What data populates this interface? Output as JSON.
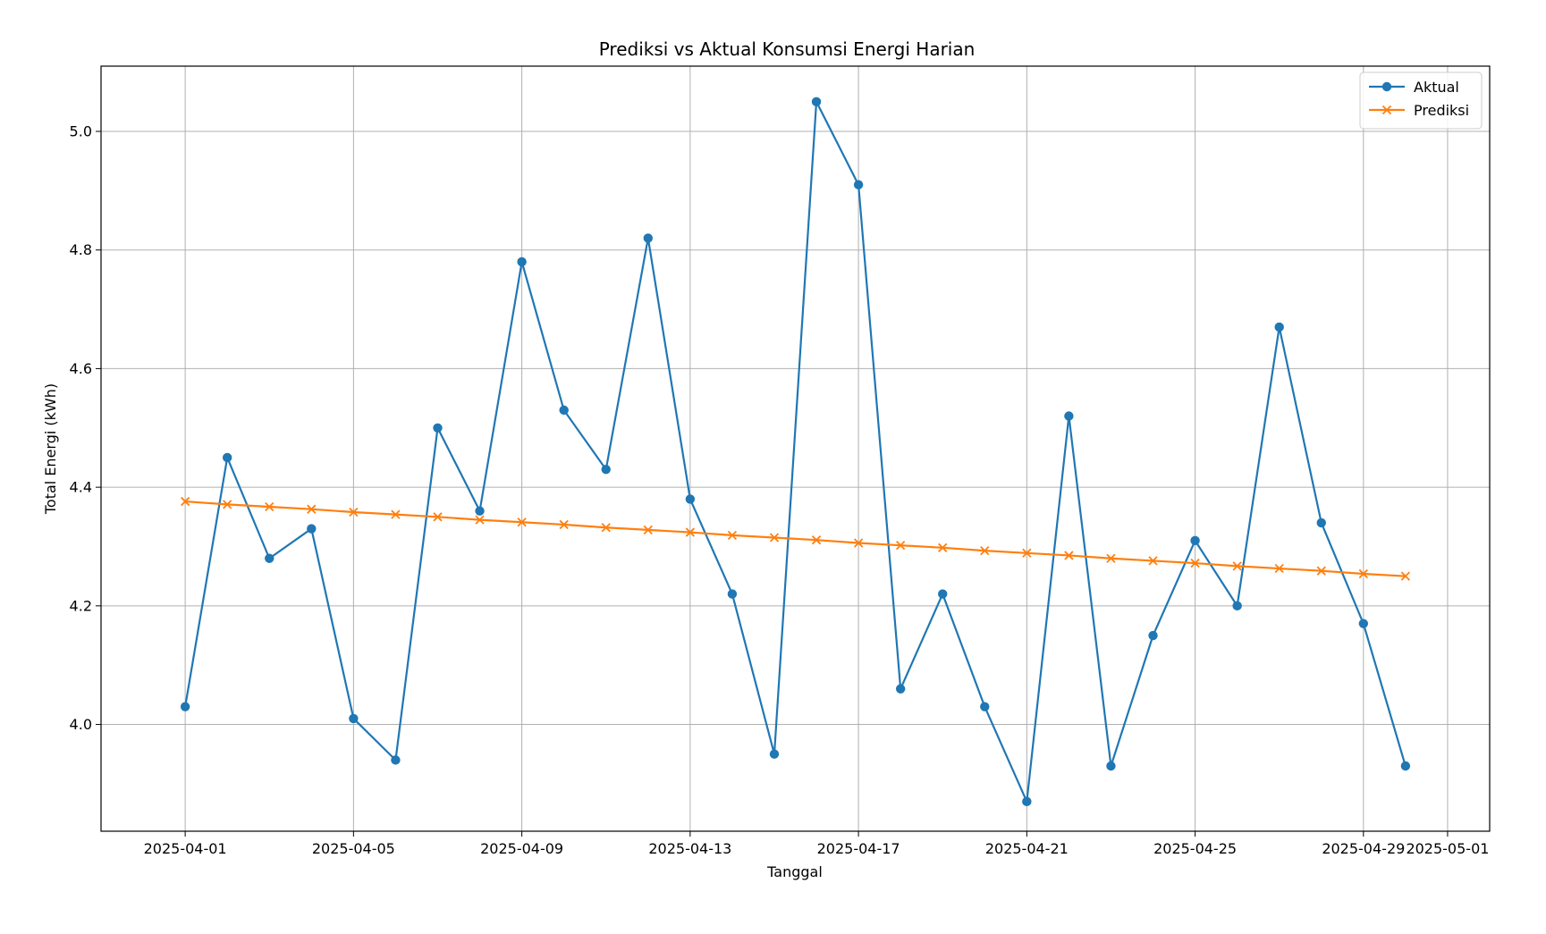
{
  "chart_data": {
    "type": "line",
    "title": "Prediksi vs Aktual Konsumsi Energi Harian",
    "xlabel": "Tanggal",
    "ylabel": "Total Energi (kWh)",
    "x_range": [
      "2025-03-30",
      "2025-05-02"
    ],
    "ylim": [
      3.82,
      5.11
    ],
    "x_ticks": [
      "2025-04-01",
      "2025-04-05",
      "2025-04-09",
      "2025-04-13",
      "2025-04-17",
      "2025-04-21",
      "2025-04-25",
      "2025-04-29",
      "2025-05-01"
    ],
    "y_ticks": [
      "4.0",
      "4.2",
      "4.4",
      "4.6",
      "4.8",
      "5.0"
    ],
    "grid": true,
    "legend_position": "top-right",
    "x": [
      "2025-04-01",
      "2025-04-02",
      "2025-04-03",
      "2025-04-04",
      "2025-04-05",
      "2025-04-06",
      "2025-04-07",
      "2025-04-08",
      "2025-04-09",
      "2025-04-10",
      "2025-04-11",
      "2025-04-12",
      "2025-04-13",
      "2025-04-14",
      "2025-04-15",
      "2025-04-16",
      "2025-04-17",
      "2025-04-18",
      "2025-04-19",
      "2025-04-20",
      "2025-04-21",
      "2025-04-22",
      "2025-04-23",
      "2025-04-24",
      "2025-04-25",
      "2025-04-26",
      "2025-04-27",
      "2025-04-28",
      "2025-04-29",
      "2025-04-30"
    ],
    "series": [
      {
        "name": "Aktual",
        "color": "#1f77b4",
        "marker": "circle",
        "values": [
          4.03,
          4.45,
          4.28,
          4.33,
          4.01,
          3.94,
          4.5,
          4.36,
          4.78,
          4.53,
          4.43,
          4.82,
          4.38,
          4.22,
          3.95,
          5.05,
          4.91,
          4.06,
          4.22,
          4.03,
          3.87,
          4.52,
          3.93,
          4.15,
          4.31,
          4.2,
          4.67,
          4.34,
          4.17,
          3.93
        ]
      },
      {
        "name": "Prediksi",
        "color": "#ff7f0e",
        "marker": "x",
        "values": [
          4.376,
          4.371,
          4.367,
          4.363,
          4.358,
          4.354,
          4.35,
          4.345,
          4.341,
          4.337,
          4.332,
          4.328,
          4.324,
          4.319,
          4.315,
          4.311,
          4.306,
          4.302,
          4.298,
          4.293,
          4.289,
          4.285,
          4.28,
          4.276,
          4.272,
          4.267,
          4.263,
          4.259,
          4.254,
          4.25
        ]
      }
    ]
  }
}
